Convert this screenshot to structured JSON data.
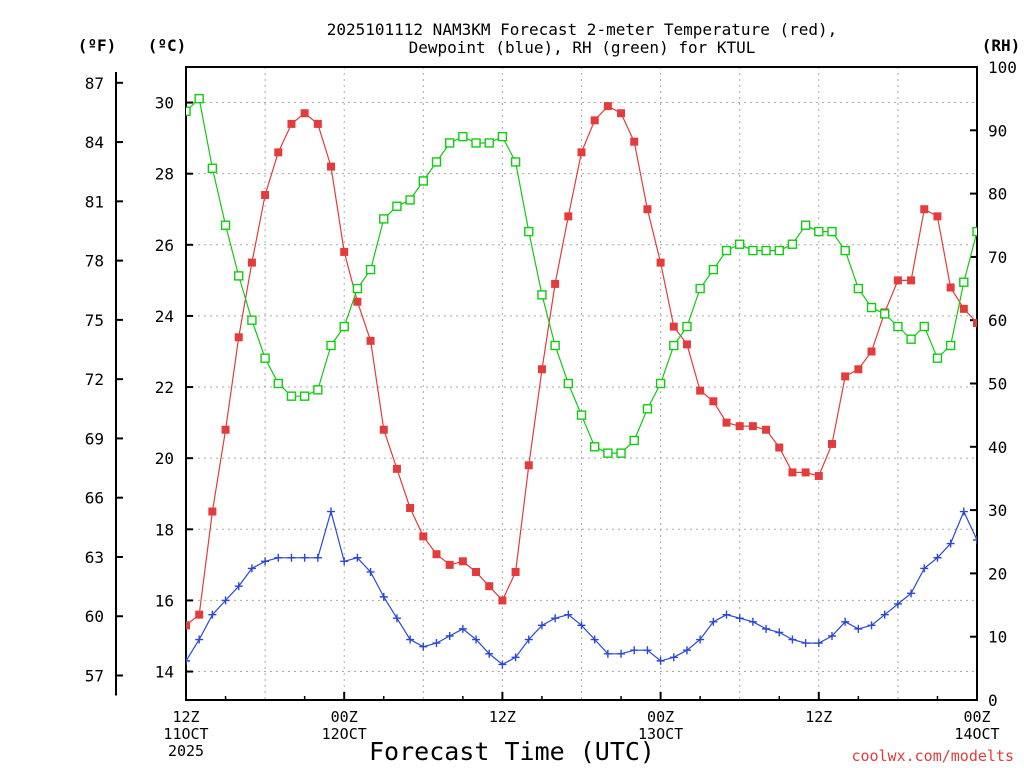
{
  "chart_data": {
    "type": "line",
    "title_line1": "2025101112 NAM3KM Forecast 2-meter Temperature (red),",
    "title_line2": "Dewpoint (blue), RH (green) for KTUL",
    "xlabel": "Forecast Time (UTC)",
    "credit": "coolwx.com/modelts",
    "units": {
      "fahrenheit": "(ºF)",
      "celsius": "(ºC)",
      "rh": "(RH)"
    },
    "x_hours": [
      0,
      1,
      2,
      3,
      4,
      5,
      6,
      7,
      8,
      9,
      10,
      11,
      12,
      13,
      14,
      15,
      16,
      17,
      18,
      19,
      20,
      21,
      22,
      23,
      24,
      25,
      26,
      27,
      28,
      29,
      30,
      31,
      32,
      33,
      34,
      35,
      36,
      37,
      38,
      39,
      40,
      41,
      42,
      43,
      44,
      45,
      46,
      47,
      48,
      49,
      50,
      51,
      52,
      53,
      54,
      55,
      56,
      57,
      58,
      59,
      60
    ],
    "xlim": [
      0,
      60
    ],
    "x_ticks": [
      {
        "hour": 0,
        "lines": [
          "12Z",
          "11OCT",
          "2025"
        ]
      },
      {
        "hour": 12,
        "lines": [
          "00Z",
          "12OCT"
        ]
      },
      {
        "hour": 24,
        "lines": [
          "12Z"
        ]
      },
      {
        "hour": 36,
        "lines": [
          "00Z",
          "13OCT"
        ]
      },
      {
        "hour": 48,
        "lines": [
          "12Z"
        ]
      },
      {
        "hour": 60,
        "lines": [
          "00Z",
          "14OCT"
        ]
      }
    ],
    "ylim_celsius": [
      13.2,
      31
    ],
    "celsius_ticks": [
      14,
      16,
      18,
      20,
      22,
      24,
      26,
      28,
      30
    ],
    "fahrenheit_ticks": [
      57,
      60,
      63,
      66,
      69,
      72,
      75,
      78,
      81,
      84,
      87
    ],
    "ylim_rh": [
      0,
      100
    ],
    "rh_ticks": [
      0,
      10,
      20,
      30,
      40,
      50,
      60,
      70,
      80,
      90,
      100
    ],
    "series": [
      {
        "name": "2-meter Temperature",
        "units": "C",
        "axis": "left",
        "color": "#e23c3c",
        "marker": "filled-square",
        "values": [
          15.3,
          15.6,
          18.5,
          20.8,
          23.4,
          25.5,
          27.4,
          28.6,
          29.4,
          29.7,
          29.4,
          28.2,
          25.8,
          24.4,
          23.3,
          20.8,
          19.7,
          18.6,
          17.8,
          17.3,
          17.0,
          17.1,
          16.8,
          16.4,
          16.0,
          16.8,
          19.8,
          22.5,
          24.9,
          26.8,
          28.6,
          29.5,
          29.9,
          29.7,
          28.9,
          27.0,
          25.5,
          23.7,
          23.2,
          21.9,
          21.6,
          21.0,
          20.9,
          20.9,
          20.8,
          20.3,
          19.6,
          19.6,
          19.5,
          20.4,
          22.3,
          22.5,
          23.0,
          24.1,
          25.0,
          25.0,
          27.0,
          26.8,
          24.8,
          24.2,
          23.8
        ]
      },
      {
        "name": "Dewpoint",
        "units": "C",
        "axis": "left",
        "color": "#2a48d6",
        "marker": "plus",
        "values": [
          14.3,
          14.9,
          15.6,
          16.0,
          16.4,
          16.9,
          17.1,
          17.2,
          17.2,
          17.2,
          17.2,
          18.5,
          17.1,
          17.2,
          16.8,
          16.1,
          15.5,
          14.9,
          14.7,
          14.8,
          15.0,
          15.2,
          14.9,
          14.5,
          14.2,
          14.4,
          14.9,
          15.3,
          15.5,
          15.6,
          15.3,
          14.9,
          14.5,
          14.5,
          14.6,
          14.6,
          14.3,
          14.4,
          14.6,
          14.9,
          15.4,
          15.6,
          15.5,
          15.4,
          15.2,
          15.1,
          14.9,
          14.8,
          14.8,
          15.0,
          15.4,
          15.2,
          15.3,
          15.6,
          15.9,
          16.2,
          16.9,
          17.2,
          17.6,
          18.5,
          17.7
        ]
      },
      {
        "name": "RH",
        "units": "%",
        "axis": "right",
        "color": "#10cc10",
        "marker": "open-square",
        "values": [
          93,
          95,
          84,
          75,
          67,
          60,
          54,
          50,
          48,
          48,
          49,
          56,
          59,
          65,
          68,
          76,
          78,
          79,
          82,
          85,
          88,
          89,
          88,
          88,
          89,
          85,
          74,
          64,
          56,
          50,
          45,
          40,
          39,
          39,
          41,
          46,
          50,
          56,
          59,
          65,
          68,
          71,
          72,
          71,
          71,
          71,
          72,
          75,
          74,
          74,
          71,
          65,
          62,
          61,
          59,
          57,
          59,
          54,
          56,
          66,
          74
        ]
      }
    ]
  }
}
